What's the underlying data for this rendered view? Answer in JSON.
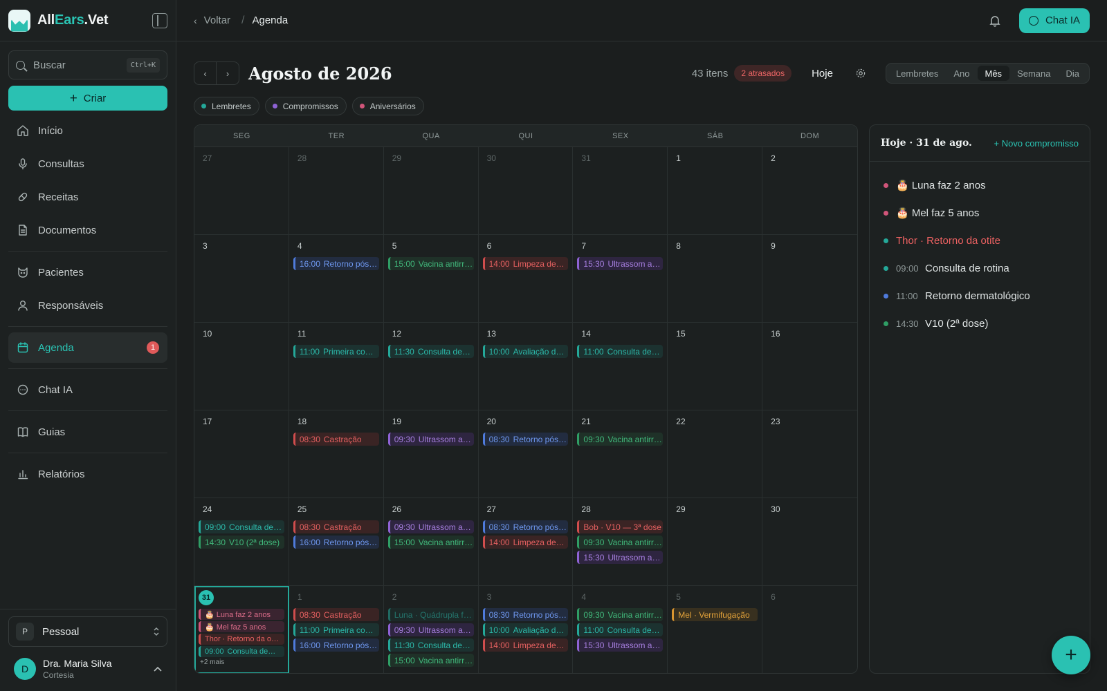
{
  "sidebar": {
    "brand": {
      "part1": "All",
      "part2": "Ears",
      "part3": ".Vet"
    },
    "search": {
      "placeholder": "Buscar",
      "shortcut": "Ctrl+K"
    },
    "create_label": "Criar",
    "nav": [
      {
        "label": "Início",
        "icon": "home-icon"
      },
      {
        "label": "Consultas",
        "icon": "microphone-icon"
      },
      {
        "label": "Receitas",
        "icon": "pill-icon"
      },
      {
        "label": "Documentos",
        "icon": "document-icon"
      },
      {
        "label": "Pacientes",
        "icon": "cat-icon"
      },
      {
        "label": "Responsáveis",
        "icon": "user-icon"
      },
      {
        "label": "Agenda",
        "icon": "calendar-icon",
        "badge": "1"
      },
      {
        "label": "Chat IA",
        "icon": "chat-icon"
      },
      {
        "label": "Guias",
        "icon": "book-icon"
      },
      {
        "label": "Relatórios",
        "icon": "bar-chart-icon"
      }
    ],
    "workspace": {
      "initial": "P",
      "name": "Pessoal"
    },
    "user": {
      "initial": "D",
      "name": "Dra. Maria Silva",
      "plan": "Cortesia"
    }
  },
  "topbar": {
    "back_label": "Voltar",
    "separator": "/",
    "current": "Agenda",
    "chat_label": "Chat IA"
  },
  "toolbar": {
    "month_title": "Agosto de 2026",
    "count": "43 itens",
    "late": "2 atrasados",
    "today": "Hoje",
    "views": [
      "Lembretes",
      "Ano",
      "Mês",
      "Semana",
      "Dia"
    ],
    "selected_view": "Mês"
  },
  "filters": [
    {
      "label": "Lembretes",
      "color": "#24a899"
    },
    {
      "label": "Compromissos",
      "color": "#8e62d4"
    },
    {
      "label": "Aniversários",
      "color": "#d1557a"
    }
  ],
  "calendar": {
    "weekdays": [
      "SEG",
      "TER",
      "QUA",
      "QUI",
      "SEX",
      "SÁB",
      "DOM"
    ],
    "days": [
      {
        "n": "27",
        "muted": true,
        "events": []
      },
      {
        "n": "28",
        "muted": true,
        "events": []
      },
      {
        "n": "29",
        "muted": true,
        "events": []
      },
      {
        "n": "30",
        "muted": true,
        "events": []
      },
      {
        "n": "31",
        "muted": true,
        "events": []
      },
      {
        "n": "1",
        "events": []
      },
      {
        "n": "2",
        "events": []
      },
      {
        "n": "3",
        "events": []
      },
      {
        "n": "4",
        "events": [
          {
            "t": "16:00",
            "l": "Retorno pós…",
            "c": "blue"
          }
        ]
      },
      {
        "n": "5",
        "events": [
          {
            "t": "15:00",
            "l": "Vacina antirr…",
            "c": "green"
          }
        ]
      },
      {
        "n": "6",
        "events": [
          {
            "t": "14:00",
            "l": "Limpeza de…",
            "c": "red"
          }
        ]
      },
      {
        "n": "7",
        "events": [
          {
            "t": "15:30",
            "l": "Ultrassom a…",
            "c": "purple"
          }
        ]
      },
      {
        "n": "8",
        "events": []
      },
      {
        "n": "9",
        "events": []
      },
      {
        "n": "10",
        "events": []
      },
      {
        "n": "11",
        "events": [
          {
            "t": "11:00",
            "l": "Primeira co…",
            "c": "teal"
          }
        ]
      },
      {
        "n": "12",
        "events": [
          {
            "t": "11:30",
            "l": "Consulta de…",
            "c": "teal"
          }
        ]
      },
      {
        "n": "13",
        "events": [
          {
            "t": "10:00",
            "l": "Avaliação d…",
            "c": "teal"
          }
        ]
      },
      {
        "n": "14",
        "events": [
          {
            "t": "11:00",
            "l": "Consulta de…",
            "c": "teal"
          }
        ]
      },
      {
        "n": "15",
        "events": []
      },
      {
        "n": "16",
        "events": []
      },
      {
        "n": "17",
        "events": []
      },
      {
        "n": "18",
        "events": [
          {
            "t": "08:30",
            "l": "Castração",
            "c": "red"
          }
        ]
      },
      {
        "n": "19",
        "events": [
          {
            "t": "09:30",
            "l": "Ultrassom a…",
            "c": "purple"
          }
        ]
      },
      {
        "n": "20",
        "events": [
          {
            "t": "08:30",
            "l": "Retorno pós…",
            "c": "blue"
          }
        ]
      },
      {
        "n": "21",
        "events": [
          {
            "t": "09:30",
            "l": "Vacina antirr…",
            "c": "green"
          }
        ]
      },
      {
        "n": "22",
        "events": []
      },
      {
        "n": "23",
        "events": []
      },
      {
        "n": "24",
        "events": [
          {
            "t": "09:00",
            "l": "Consulta de…",
            "c": "teal"
          },
          {
            "t": "14:30",
            "l": "V10 (2ª dose)",
            "c": "green"
          }
        ]
      },
      {
        "n": "25",
        "events": [
          {
            "t": "08:30",
            "l": "Castração",
            "c": "red"
          },
          {
            "t": "16:00",
            "l": "Retorno pós…",
            "c": "blue"
          }
        ]
      },
      {
        "n": "26",
        "events": [
          {
            "t": "09:30",
            "l": "Ultrassom a…",
            "c": "purple"
          },
          {
            "t": "15:00",
            "l": "Vacina antirr…",
            "c": "green"
          }
        ]
      },
      {
        "n": "27",
        "events": [
          {
            "t": "08:30",
            "l": "Retorno pós…",
            "c": "blue"
          },
          {
            "t": "14:00",
            "l": "Limpeza de…",
            "c": "red"
          }
        ]
      },
      {
        "n": "28",
        "events": [
          {
            "t": "",
            "l": "Bob · V10 — 3ª dose",
            "c": "red"
          },
          {
            "t": "09:30",
            "l": "Vacina antirr…",
            "c": "green"
          },
          {
            "t": "15:30",
            "l": "Ultrassom a…",
            "c": "purple"
          }
        ]
      },
      {
        "n": "29",
        "events": []
      },
      {
        "n": "30",
        "events": []
      },
      {
        "n": "31",
        "today": true,
        "small": true,
        "more": "+2 mais",
        "events": [
          {
            "t": "",
            "l": "🎂 Luna faz 2 anos",
            "c": "pink"
          },
          {
            "t": "",
            "l": "🎂 Mel faz 5 anos",
            "c": "pink"
          },
          {
            "t": "",
            "l": "Thor · Retorno da o…",
            "c": "red"
          },
          {
            "t": "09:00",
            "l": "Consulta de…",
            "c": "teal"
          }
        ]
      },
      {
        "n": "1",
        "muted": true,
        "events": [
          {
            "t": "08:30",
            "l": "Castração",
            "c": "red"
          },
          {
            "t": "11:00",
            "l": "Primeira co…",
            "c": "teal"
          },
          {
            "t": "16:00",
            "l": "Retorno pós…",
            "c": "blue"
          }
        ]
      },
      {
        "n": "2",
        "muted": true,
        "events": [
          {
            "t": "",
            "l": "Luna · Quádrupla fe…",
            "c": "teal",
            "faded": true
          },
          {
            "t": "09:30",
            "l": "Ultrassom a…",
            "c": "purple"
          },
          {
            "t": "11:30",
            "l": "Consulta de…",
            "c": "teal"
          },
          {
            "t": "15:00",
            "l": "Vacina antirr…",
            "c": "green"
          }
        ]
      },
      {
        "n": "3",
        "muted": true,
        "events": [
          {
            "t": "08:30",
            "l": "Retorno pós…",
            "c": "blue"
          },
          {
            "t": "10:00",
            "l": "Avaliação d…",
            "c": "teal"
          },
          {
            "t": "14:00",
            "l": "Limpeza de…",
            "c": "red"
          }
        ]
      },
      {
        "n": "4",
        "muted": true,
        "events": [
          {
            "t": "09:30",
            "l": "Vacina antirr…",
            "c": "green"
          },
          {
            "t": "11:00",
            "l": "Consulta de…",
            "c": "teal"
          },
          {
            "t": "15:30",
            "l": "Ultrassom a…",
            "c": "purple"
          }
        ]
      },
      {
        "n": "5",
        "muted": true,
        "events": [
          {
            "t": "",
            "l": "Mel · Vermifugação",
            "c": "orange"
          }
        ]
      },
      {
        "n": "6",
        "muted": true,
        "events": []
      }
    ]
  },
  "panel": {
    "title": "Hoje · 31 de ago.",
    "new_label": "+ Novo compromisso",
    "items": [
      {
        "time": "",
        "label": "🎂 Luna faz 2 anos",
        "dot": "#d1557a",
        "red": false
      },
      {
        "time": "",
        "label": "🎂 Mel faz 5 anos",
        "dot": "#d1557a",
        "red": false
      },
      {
        "time": "",
        "label": "Thor · Retorno da otite",
        "dot": "#24a899",
        "red": true
      },
      {
        "time": "09:00",
        "label": "Consulta de rotina",
        "dot": "#24a899",
        "red": false
      },
      {
        "time": "11:00",
        "label": "Retorno dermatológico",
        "dot": "#4f7bdc",
        "red": false
      },
      {
        "time": "14:30",
        "label": "V10 (2ª dose)",
        "dot": "#2f9e65",
        "red": false
      }
    ]
  },
  "fab_label": "+"
}
